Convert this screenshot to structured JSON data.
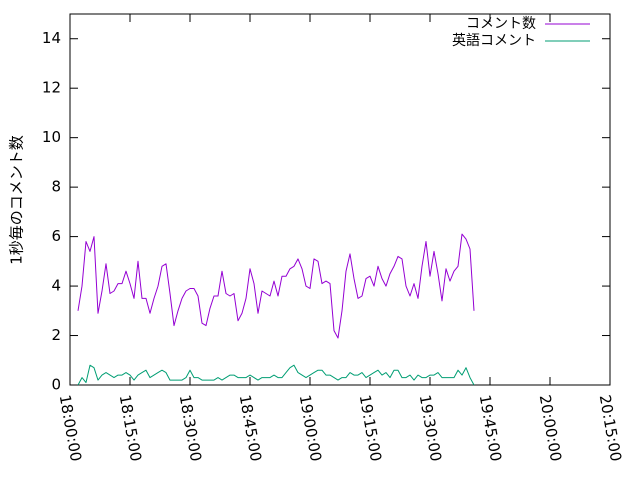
{
  "chart_data": {
    "type": "line",
    "title": "",
    "xlabel": "",
    "ylabel": "1秒毎のコメント数",
    "xlim": [
      "18:00:00",
      "20:15:00"
    ],
    "ylim": [
      0,
      15
    ],
    "y_ticks": [
      0,
      2,
      4,
      6,
      8,
      10,
      12,
      14
    ],
    "x_ticks": [
      "18:00:00",
      "18:15:00",
      "18:30:00",
      "18:45:00",
      "19:00:00",
      "19:15:00",
      "19:30:00",
      "19:45:00",
      "20:00:00",
      "20:15:00"
    ],
    "grid": false,
    "legend_position": "top-right",
    "x_interval_seconds": 60,
    "x_start": "18:02:00",
    "series": [
      {
        "name": "コメント数",
        "color": "#9400d3",
        "values": [
          3.0,
          4.0,
          5.8,
          5.4,
          6.0,
          2.9,
          3.8,
          4.9,
          3.7,
          3.8,
          4.1,
          4.1,
          4.6,
          4.1,
          3.5,
          5.0,
          3.5,
          3.5,
          2.9,
          3.5,
          4.0,
          4.8,
          4.9,
          3.7,
          2.4,
          3.0,
          3.5,
          3.8,
          3.9,
          3.9,
          3.6,
          2.5,
          2.4,
          3.1,
          3.6,
          3.6,
          4.6,
          3.7,
          3.6,
          3.7,
          2.6,
          2.9,
          3.5,
          4.7,
          4.1,
          2.9,
          3.8,
          3.7,
          3.6,
          4.2,
          3.6,
          4.4,
          4.4,
          4.7,
          4.8,
          5.1,
          4.7,
          4.0,
          3.9,
          5.1,
          5.0,
          4.1,
          4.2,
          4.1,
          2.2,
          1.9,
          3.0,
          4.6,
          5.3,
          4.3,
          3.5,
          3.6,
          4.3,
          4.4,
          4.0,
          4.8,
          4.3,
          4.0,
          4.5,
          4.8,
          5.2,
          5.1,
          4.0,
          3.6,
          4.1,
          3.5,
          4.8,
          5.8,
          4.4,
          5.4,
          4.5,
          3.4,
          4.7,
          4.2,
          4.6,
          4.8,
          6.1,
          5.9,
          5.5,
          3.0
        ]
      },
      {
        "name": "英語コメント",
        "color": "#009e73",
        "values": [
          0.0,
          0.3,
          0.1,
          0.8,
          0.7,
          0.2,
          0.4,
          0.5,
          0.4,
          0.3,
          0.4,
          0.4,
          0.5,
          0.4,
          0.2,
          0.4,
          0.5,
          0.6,
          0.3,
          0.4,
          0.5,
          0.6,
          0.5,
          0.2,
          0.2,
          0.2,
          0.2,
          0.3,
          0.6,
          0.3,
          0.3,
          0.2,
          0.2,
          0.2,
          0.2,
          0.3,
          0.2,
          0.3,
          0.4,
          0.4,
          0.3,
          0.3,
          0.3,
          0.4,
          0.3,
          0.2,
          0.3,
          0.3,
          0.3,
          0.4,
          0.3,
          0.3,
          0.5,
          0.7,
          0.8,
          0.5,
          0.4,
          0.3,
          0.4,
          0.5,
          0.6,
          0.6,
          0.4,
          0.4,
          0.3,
          0.2,
          0.3,
          0.3,
          0.5,
          0.4,
          0.4,
          0.5,
          0.3,
          0.4,
          0.5,
          0.6,
          0.4,
          0.5,
          0.3,
          0.6,
          0.6,
          0.3,
          0.3,
          0.4,
          0.2,
          0.4,
          0.3,
          0.3,
          0.4,
          0.4,
          0.5,
          0.3,
          0.3,
          0.3,
          0.3,
          0.6,
          0.4,
          0.7,
          0.3,
          0.0
        ]
      }
    ]
  }
}
